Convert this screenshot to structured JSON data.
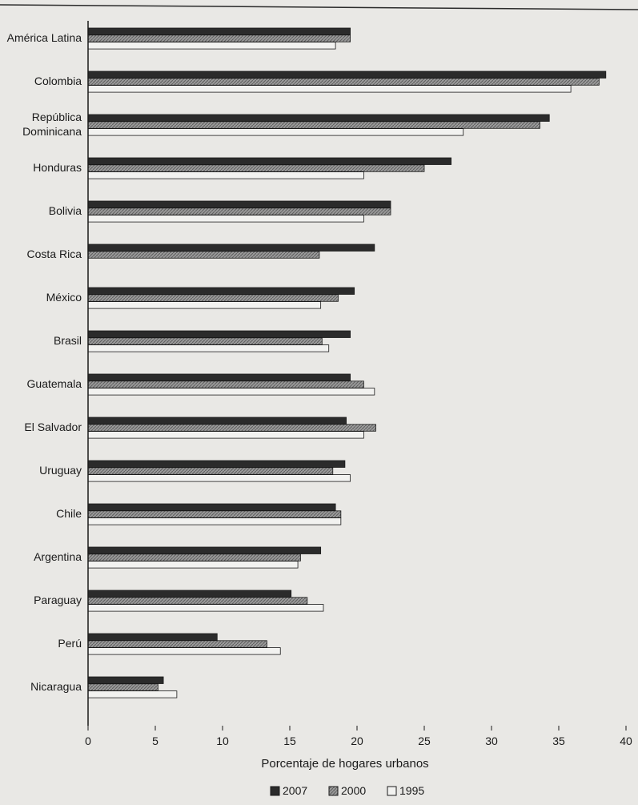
{
  "chart_data": {
    "type": "bar",
    "orientation": "horizontal",
    "categories": [
      "América Latina",
      "Colombia",
      "República Dominicana",
      "Honduras",
      "Bolivia",
      "Costa Rica",
      "México",
      "Brasil",
      "Guatemala",
      "El Salvador",
      "Uruguay",
      "Chile",
      "Argentina",
      "Paraguay",
      "Perú",
      "Nicaragua"
    ],
    "category_lines": [
      [
        "América Latina"
      ],
      [
        "Colombia"
      ],
      [
        "República",
        "Dominicana"
      ],
      [
        "Honduras"
      ],
      [
        "Bolivia"
      ],
      [
        "Costa Rica"
      ],
      [
        "México"
      ],
      [
        "Brasil"
      ],
      [
        "Guatemala"
      ],
      [
        "El Salvador"
      ],
      [
        "Uruguay"
      ],
      [
        "Chile"
      ],
      [
        "Argentina"
      ],
      [
        "Paraguay"
      ],
      [
        "Perú"
      ],
      [
        "Nicaragua"
      ]
    ],
    "series": [
      {
        "name": "2007",
        "pattern": "dark",
        "values": [
          19.5,
          38.5,
          34.3,
          27.0,
          22.5,
          21.3,
          19.8,
          19.5,
          19.5,
          19.2,
          19.1,
          18.4,
          17.3,
          15.1,
          9.6,
          5.6
        ]
      },
      {
        "name": "2000",
        "pattern": "hatched",
        "values": [
          19.5,
          38.0,
          33.6,
          25.0,
          22.5,
          17.2,
          18.6,
          17.4,
          20.5,
          21.4,
          18.2,
          18.8,
          15.8,
          16.3,
          13.3,
          5.2
        ]
      },
      {
        "name": "1995",
        "pattern": "light",
        "values": [
          18.4,
          35.9,
          27.9,
          20.5,
          20.5,
          null,
          17.3,
          17.9,
          21.3,
          20.5,
          19.5,
          18.8,
          15.6,
          17.5,
          14.3,
          6.6
        ]
      }
    ],
    "x_ticks": [
      0,
      5,
      10,
      15,
      20,
      25,
      30,
      35,
      40
    ],
    "xlim": [
      0,
      40
    ],
    "xlabel": "Porcentaje de hogares urbanos",
    "legend_position": "bottom-center",
    "grid": false,
    "colors": {
      "background": "#e9e8e5",
      "dark": "#2b2b2b",
      "hatched": "#8c8c8c",
      "light": "#f2f2f0",
      "outline": "#1a1a1a"
    }
  }
}
